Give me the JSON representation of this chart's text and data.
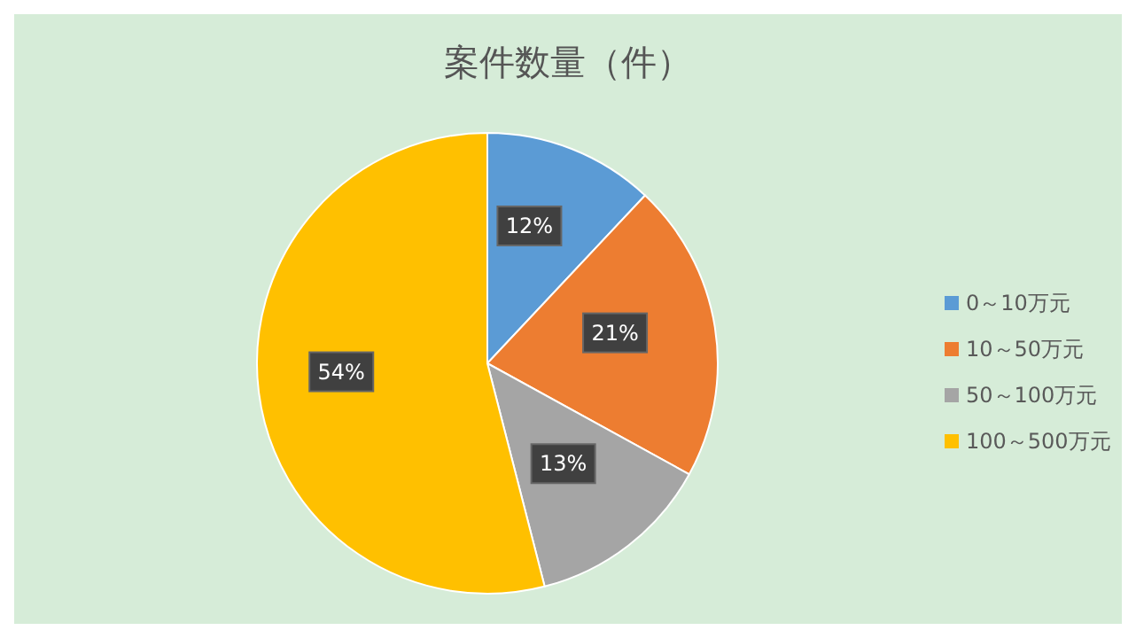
{
  "chart_data": {
    "type": "pie",
    "title": "案件数量（件）",
    "categories": [
      "0～10万元",
      "10～50万元",
      "50～100万元",
      "100～500万元"
    ],
    "values": [
      12,
      21,
      13,
      54
    ],
    "colors": [
      "#5b9bd5",
      "#ed7d31",
      "#a5a5a5",
      "#ffc000"
    ],
    "value_labels": [
      "12%",
      "21%",
      "13%",
      "54%"
    ],
    "legend": "right"
  }
}
